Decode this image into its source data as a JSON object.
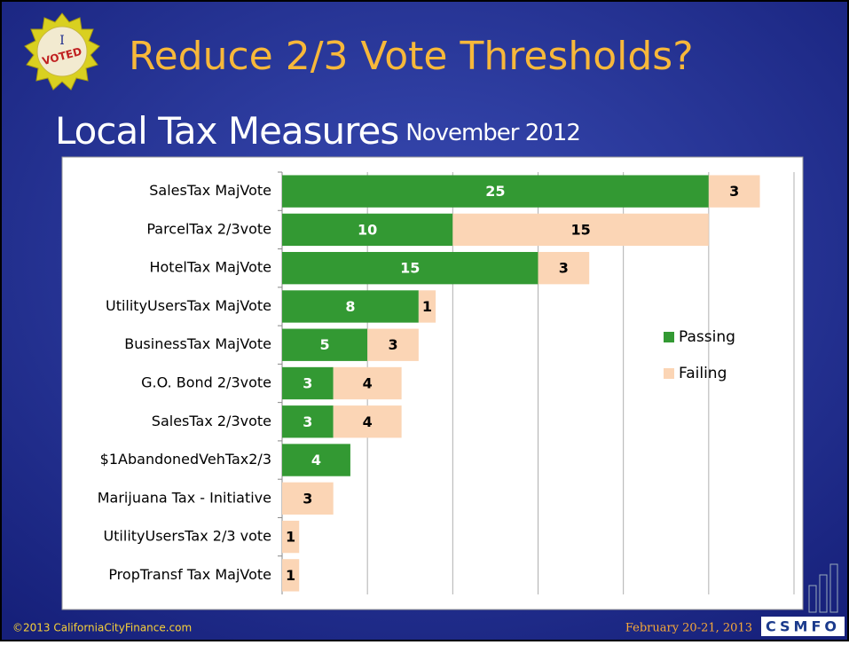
{
  "slide": {
    "title": "Reduce 2/3 Vote Thresholds?",
    "subtitle": "Local Tax Measures",
    "subtitle_note": "November 2012",
    "badge_top": "I",
    "badge_bottom": "VOTED",
    "footer_left": "©2013 CaliforniaCityFinance.com",
    "footer_right": "February 20-21, 2013",
    "logo": "CSMFO"
  },
  "chart_data": {
    "type": "stacked_barh",
    "categories": [
      "SalesTax MajVote",
      "ParcelTax 2/3vote",
      "HotelTax MajVote",
      "UtilityUsersTax MajVote",
      "BusinessTax MajVote",
      "G.O. Bond 2/3vote",
      "SalesTax 2/3vote",
      "$1AbandonedVehTax2/3",
      "Marijuana Tax - Initiative",
      "UtilityUsersTax 2/3 vote",
      "PropTransf Tax MajVote"
    ],
    "series": [
      {
        "name": "Passing",
        "color": "#339933",
        "values": [
          25,
          10,
          15,
          8,
          5,
          3,
          3,
          4,
          null,
          null,
          null
        ]
      },
      {
        "name": "Failing",
        "color": "#fbd5b5",
        "values": [
          3,
          15,
          3,
          1,
          3,
          4,
          4,
          null,
          3,
          1,
          1
        ]
      }
    ],
    "xlim": [
      0,
      30
    ],
    "xticks": [
      0,
      5,
      10,
      15,
      20,
      25,
      30
    ],
    "grid": true,
    "legend": "right"
  }
}
